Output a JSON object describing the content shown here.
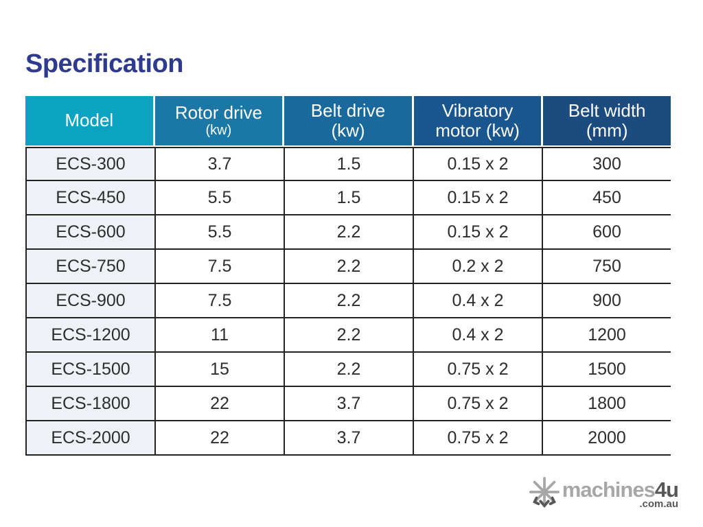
{
  "title": "Specification",
  "colors": {
    "title_text": "#2d3a8e",
    "header_text": "#ffffff",
    "model_column_bg": "#eef1f5",
    "grid_border": "#222222",
    "watermark_light": "#a7a7a7",
    "watermark_dark": "#57575a"
  },
  "table": {
    "columns": [
      {
        "key": "model",
        "label": "Model",
        "sub": "",
        "header_bg": "#0ca3c3",
        "sub_small": false
      },
      {
        "key": "rotor-drive",
        "label": "Rotor drive",
        "sub": "(kw)",
        "header_bg": "#1b77a6",
        "sub_small": true
      },
      {
        "key": "belt-drive",
        "label": "Belt drive",
        "sub": "(kw)",
        "header_bg": "#19699c",
        "sub_small": false
      },
      {
        "key": "vibratory",
        "label": "Vibratory",
        "sub": "motor (kw)",
        "header_bg": "#18568d",
        "sub_small": false
      },
      {
        "key": "belt-width",
        "label": "Belt width",
        "sub": "(mm)",
        "header_bg": "#1c4b80",
        "sub_small": false
      }
    ],
    "rows": [
      [
        "ECS-300",
        "3.7",
        "1.5",
        "0.15 x 2",
        "300"
      ],
      [
        "ECS-450",
        "5.5",
        "1.5",
        "0.15 x 2",
        "450"
      ],
      [
        "ECS-600",
        "5.5",
        "2.2",
        "0.15 x 2",
        "600"
      ],
      [
        "ECS-750",
        "7.5",
        "2.2",
        "0.2 x 2",
        "750"
      ],
      [
        "ECS-900",
        "7.5",
        "2.2",
        "0.4 x 2",
        "900"
      ],
      [
        "ECS-1200",
        "11",
        "2.2",
        "0.4 x 2",
        "1200"
      ],
      [
        "ECS-1500",
        "15",
        "2.2",
        "0.75 x 2",
        "1500"
      ],
      [
        "ECS-1800",
        "22",
        "3.7",
        "0.75 x 2",
        "1800"
      ],
      [
        "ECS-2000",
        "22",
        "3.7",
        "0.75 x 2",
        "2000"
      ]
    ]
  },
  "watermark": {
    "brand_light": "machines",
    "brand_dark": "4u",
    "domain": ".com.au",
    "icon": "snowflake-asterisk-icon"
  }
}
